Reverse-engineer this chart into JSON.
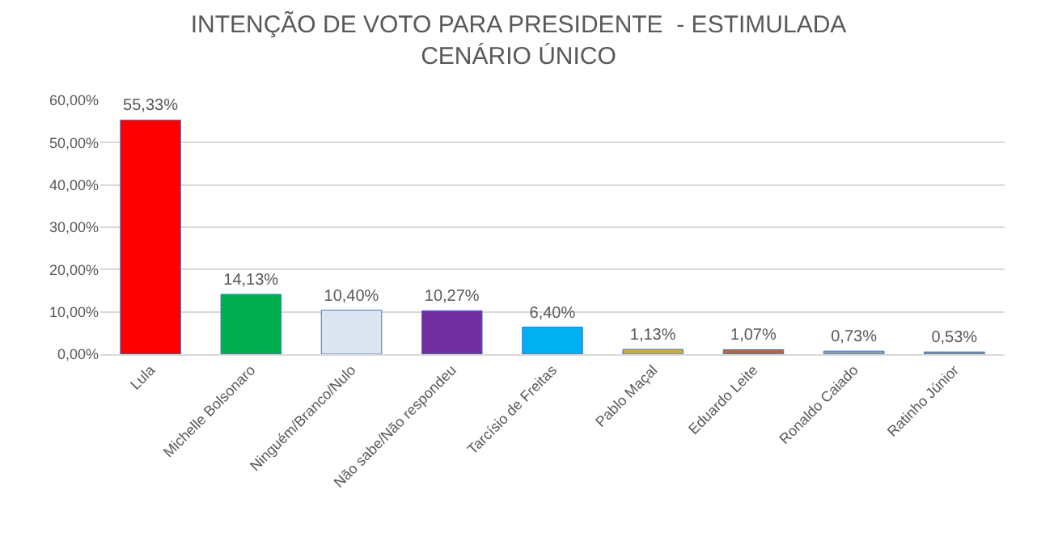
{
  "chart_data": {
    "type": "bar",
    "title": "INTENÇÃO DE VOTO PARA PRESIDENTE  - ESTIMULADA\nCENÁRIO ÚNICO",
    "categories": [
      "Lula",
      "Michelle Bolsonaro",
      "Ninguém/Branco/Nulo",
      "Não sabe/Não respondeu",
      "Tarcísio de Freitas",
      "Pablo Maçal",
      "Eduardo Leite",
      "Ronaldo Caiado",
      "Ratinho Júnior"
    ],
    "values": [
      55.33,
      14.13,
      10.4,
      10.27,
      6.4,
      1.13,
      1.07,
      0.73,
      0.53
    ],
    "value_labels": [
      "55,33%",
      "14,13%",
      "10,40%",
      "10,27%",
      "6,40%",
      "1,13%",
      "1,07%",
      "0,73%",
      "0,53%"
    ],
    "colors": [
      "#ff0000",
      "#00b050",
      "#dce6f2",
      "#7030a0",
      "#00b0f0",
      "#c8b040",
      "#b0684a",
      "#90a0a8",
      "#7a9090"
    ],
    "ylim": [
      0,
      60
    ],
    "yticks": [
      {
        "value": 0,
        "label": "0,00%"
      },
      {
        "value": 10,
        "label": "10,00%"
      },
      {
        "value": 20,
        "label": "20,00%"
      },
      {
        "value": 30,
        "label": "30,00%"
      },
      {
        "value": 40,
        "label": "40,00%"
      },
      {
        "value": 50,
        "label": "50,00%"
      },
      {
        "value": 60,
        "label": "60,00%"
      }
    ],
    "grid": "y"
  }
}
